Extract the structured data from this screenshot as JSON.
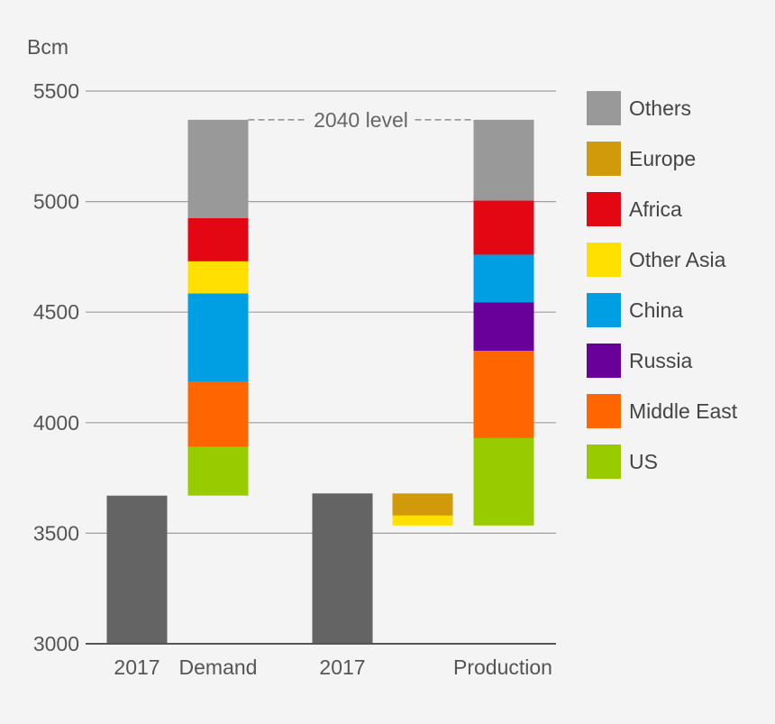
{
  "chart_data": {
    "type": "bar",
    "subtype": "stacked-waterfall",
    "ylabel": "Bcm",
    "ylim": [
      3000,
      5500
    ],
    "yticks": [
      3000,
      3500,
      4000,
      4500,
      5000,
      5500
    ],
    "grid": true,
    "legend_position": "right",
    "categories": [
      "2017",
      "Demand",
      "2017",
      "",
      "Production"
    ],
    "baselines": [
      {
        "category_index": 0,
        "label": "2017",
        "value": 3670
      },
      {
        "category_index": 2,
        "label": "2017",
        "value": 3680
      }
    ],
    "regions": [
      {
        "name": "Others",
        "color": "#999999"
      },
      {
        "name": "Europe",
        "color": "#d09a0a"
      },
      {
        "name": "Africa",
        "color": "#e30613"
      },
      {
        "name": "Other Asia",
        "color": "#ffe000"
      },
      {
        "name": "China",
        "color": "#009fe3"
      },
      {
        "name": "Russia",
        "color": "#6a0099"
      },
      {
        "name": "Middle East",
        "color": "#ff6600"
      },
      {
        "name": "US",
        "color": "#99cc00"
      }
    ],
    "stacks": [
      {
        "category_index": 1,
        "category": "Demand",
        "segments": [
          {
            "region": "US",
            "from": 3670,
            "to": 3890
          },
          {
            "region": "Middle East",
            "from": 3890,
            "to": 4185
          },
          {
            "region": "China",
            "from": 4185,
            "to": 4585
          },
          {
            "region": "Other Asia",
            "from": 4585,
            "to": 4730
          },
          {
            "region": "Africa",
            "from": 4730,
            "to": 4925
          },
          {
            "region": "Others",
            "from": 4925,
            "to": 5370
          }
        ]
      },
      {
        "category_index": 3,
        "category": "",
        "segments": [
          {
            "region": "Other Asia",
            "from": 3535,
            "to": 3580
          },
          {
            "region": "Europe",
            "from": 3580,
            "to": 3680
          }
        ]
      },
      {
        "category_index": 4,
        "category": "Production",
        "segments": [
          {
            "region": "US",
            "from": 3535,
            "to": 3930
          },
          {
            "region": "Middle East",
            "from": 3930,
            "to": 4325
          },
          {
            "region": "Russia",
            "from": 4325,
            "to": 4545
          },
          {
            "region": "China",
            "from": 4545,
            "to": 4760
          },
          {
            "region": "Africa",
            "from": 4760,
            "to": 5005
          },
          {
            "region": "Others",
            "from": 5005,
            "to": 5370
          }
        ]
      }
    ],
    "annotation": {
      "text": "2040 level",
      "value": 5370
    },
    "colors": {
      "baseline_bar": "#646464",
      "grid": "#9e9e9e",
      "axis": "#555555",
      "background": "#f4f4f4"
    }
  }
}
